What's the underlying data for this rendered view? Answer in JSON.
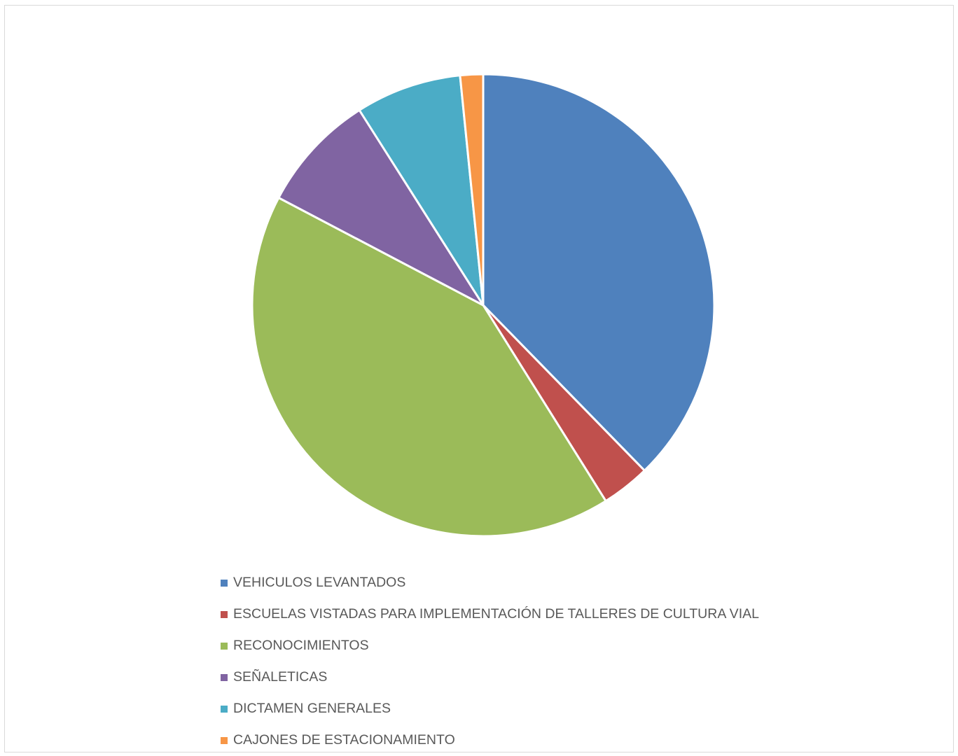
{
  "chart_data": {
    "type": "pie",
    "title": "",
    "legend_position": "bottom",
    "start_angle": "top",
    "direction": "clockwise",
    "slices": [
      {
        "label": "VEHICULOS LEVANTADOS",
        "value": 37.7,
        "color": "#4F81BD"
      },
      {
        "label": "ESCUELAS VISTADAS PARA IMPLEMENTACIÓN DE TALLERES DE CULTURA VIAL",
        "value": 3.4,
        "color": "#C0504D"
      },
      {
        "label": "RECONOCIMIENTOS",
        "value": 41.6,
        "color": "#9BBB59"
      },
      {
        "label": "SEÑALETICAS",
        "value": 8.3,
        "color": "#8064A2"
      },
      {
        "label": "DICTAMEN GENERALES",
        "value": 7.4,
        "color": "#4BACC6"
      },
      {
        "label": "CAJONES DE ESTACIONAMIENTO",
        "value": 1.6,
        "color": "#F79646"
      }
    ]
  }
}
